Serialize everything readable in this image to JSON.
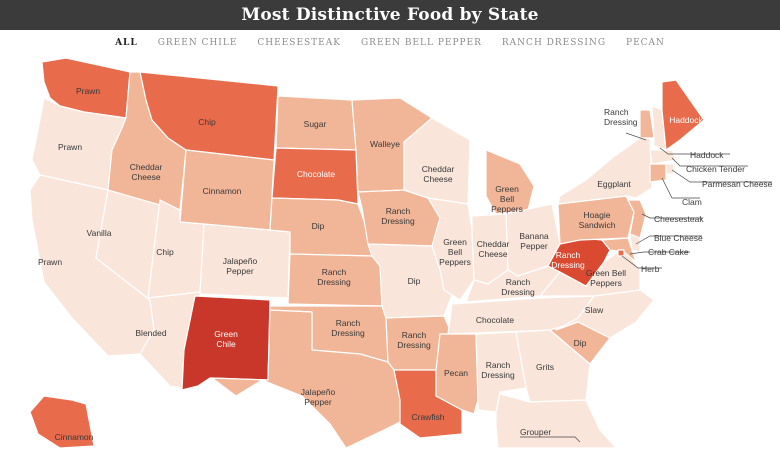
{
  "title": "Most Distinctive Food by State",
  "tabs": [
    {
      "label": "ALL",
      "active": true
    },
    {
      "label": "GREEN CHILE",
      "active": false
    },
    {
      "label": "CHEESESTEAK",
      "active": false
    },
    {
      "label": "GREEN BELL PEPPER",
      "active": false
    },
    {
      "label": "RANCH DRESSING",
      "active": false
    },
    {
      "label": "PECAN",
      "active": false
    }
  ],
  "colors": {
    "level_1": "#f9e5da",
    "level_2": "#f1b597",
    "level_3": "#ec9070",
    "level_4": "#e86b4c",
    "level_5": "#d94a31",
    "level_6": "#c8372a",
    "title_bar": "#3b3b3b"
  },
  "states": {
    "WA": {
      "food": "Prawn",
      "level": 4
    },
    "OR": {
      "food": "Prawn",
      "level": 1
    },
    "CA": {
      "food": "Prawn",
      "level": 1
    },
    "NV": {
      "food": "Vanilla",
      "level": 1
    },
    "ID": {
      "food": "Cheddar Cheese",
      "level": 2
    },
    "MT": {
      "food": "Chip",
      "level": 4
    },
    "WY": {
      "food": "Cinnamon",
      "level": 2
    },
    "UT": {
      "food": "Chip",
      "level": 1
    },
    "AZ": {
      "food": "Blended",
      "level": 1
    },
    "CO": {
      "food": "Jalapeño Pepper",
      "level": 1
    },
    "NM": {
      "food": "Green Chile",
      "level": 6
    },
    "ND": {
      "food": "Sugar",
      "level": 2
    },
    "SD": {
      "food": "Chocolate",
      "level": 4
    },
    "NE": {
      "food": "Dip",
      "level": 2
    },
    "KS": {
      "food": "Ranch Dressing",
      "level": 2
    },
    "OK": {
      "food": "Ranch Dressing",
      "level": 2
    },
    "TX": {
      "food": "Jalapeño Pepper",
      "level": 2
    },
    "MN": {
      "food": "Walleye",
      "level": 2
    },
    "IA": {
      "food": "Ranch Dressing",
      "level": 2
    },
    "MO": {
      "food": "Dip",
      "level": 1
    },
    "AR": {
      "food": "Ranch Dressing",
      "level": 2
    },
    "LA": {
      "food": "Crawfish",
      "level": 4
    },
    "WI": {
      "food": "Cheddar Cheese",
      "level": 1
    },
    "IL": {
      "food": "Green Bell Peppers",
      "level": 1
    },
    "MI": {
      "food": "Green Bell Peppers",
      "level": 2
    },
    "IN": {
      "food": "Cheddar Cheese",
      "level": 1
    },
    "OH": {
      "food": "Banana Pepper",
      "level": 1
    },
    "KY": {
      "food": "Ranch Dressing",
      "level": 1
    },
    "TN": {
      "food": "Chocolate",
      "level": 1
    },
    "MS": {
      "food": "Pecan",
      "level": 2
    },
    "AL": {
      "food": "Ranch Dressing",
      "level": 1
    },
    "GA": {
      "food": "Grits",
      "level": 1
    },
    "FL": {
      "food": "Grouper",
      "level": 1
    },
    "SC": {
      "food": "Dip",
      "level": 2
    },
    "NC": {
      "food": "Slaw",
      "level": 1
    },
    "VA": {
      "food": "Green Bell Peppers",
      "level": 1
    },
    "WV": {
      "food": "Ranch Dressing",
      "level": 5
    },
    "PA": {
      "food": "Hoagie Sandwich",
      "level": 2
    },
    "NY": {
      "food": "Eggplant",
      "level": 1
    },
    "VT": {
      "food": "Ranch Dressing",
      "level": 2
    },
    "NH": {
      "food": "Haddock",
      "level": 1
    },
    "ME": {
      "food": "Haddock",
      "level": 4
    },
    "MA": {
      "food": "Chicken Tender",
      "level": 1
    },
    "RI": {
      "food": "Parmesan Cheese",
      "level": 1
    },
    "CT": {
      "food": "Clam",
      "level": 2
    },
    "NJ": {
      "food": "Cheesesteak",
      "level": 2
    },
    "DE": {
      "food": "Blue Cheese",
      "level": 1
    },
    "MD": {
      "food": "Crab Cake",
      "level": 2
    },
    "DC": {
      "food": "Herb",
      "level": 4
    },
    "AK": {
      "food": "Cinnamon",
      "level": 4
    }
  }
}
